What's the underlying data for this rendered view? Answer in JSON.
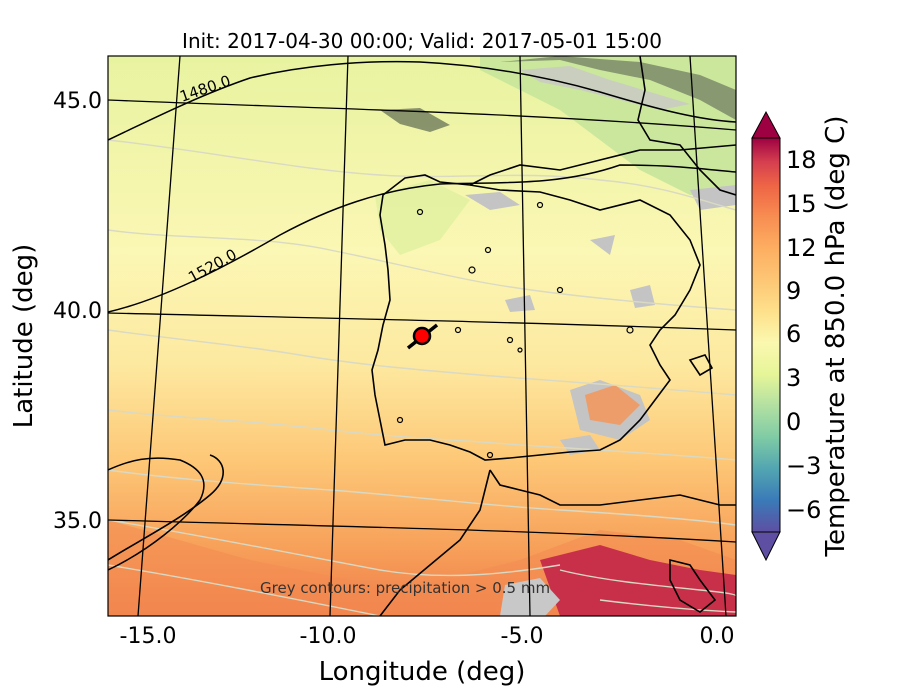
{
  "title": "Init: 2017-04-30 00:00; Valid: 2017-05-01 15:00",
  "xlabel": "Longitude (deg)",
  "ylabel": "Latitude (deg)",
  "x_ticks": [
    "-15.0",
    "-10.0",
    "-5.0",
    "0.0"
  ],
  "y_ticks": [
    "45.0",
    "40.0",
    "35.0"
  ],
  "x_range": [
    -16,
    0
  ],
  "y_range": [
    32.8,
    46
  ],
  "colorbar": {
    "label": "Temperature at 850.0 hPa (deg C)",
    "ticks": [
      "18",
      "15",
      "12",
      "9",
      "6",
      "3",
      "0",
      "−3",
      "−6"
    ],
    "range": [
      -8,
      20
    ],
    "colors_low_to_high": [
      "#5e4fa2",
      "#3a7ab8",
      "#52a5b1",
      "#7fcba5",
      "#b2e0a2",
      "#e6f598",
      "#fbf8b0",
      "#fee08b",
      "#fdc675",
      "#fdae61",
      "#f88d52",
      "#ee6445",
      "#d53e4f",
      "#9e0142"
    ]
  },
  "contour_labels": [
    "1480.0",
    "1520.0"
  ],
  "annotation": "Grey contours: precipitation  > 0.5 mm",
  "marker": {
    "lon": -7.7,
    "lat": 39.3,
    "color": "#ff0000"
  }
}
